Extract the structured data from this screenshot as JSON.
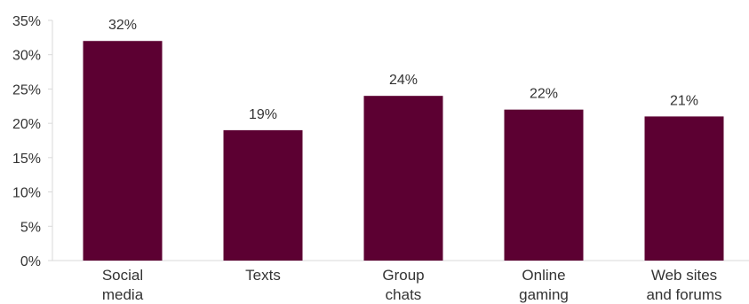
{
  "chart_data": {
    "type": "bar",
    "categories": [
      [
        "Social",
        "media"
      ],
      [
        "Texts"
      ],
      [
        "Group",
        "chats"
      ],
      [
        "Online",
        "gaming"
      ],
      [
        "Web sites",
        "and forums"
      ]
    ],
    "values": [
      32,
      19,
      24,
      22,
      21
    ],
    "value_labels": [
      "32%",
      "19%",
      "24%",
      "22%",
      "21%"
    ],
    "y_ticks": [
      "0%",
      "5%",
      "10%",
      "15%",
      "20%",
      "25%",
      "30%",
      "35%"
    ],
    "ylim": [
      0,
      35
    ],
    "title": "",
    "xlabel": "",
    "ylabel": "",
    "grid": false,
    "bar_color": "#5c0032",
    "axis_color": "#d9d9d9"
  }
}
